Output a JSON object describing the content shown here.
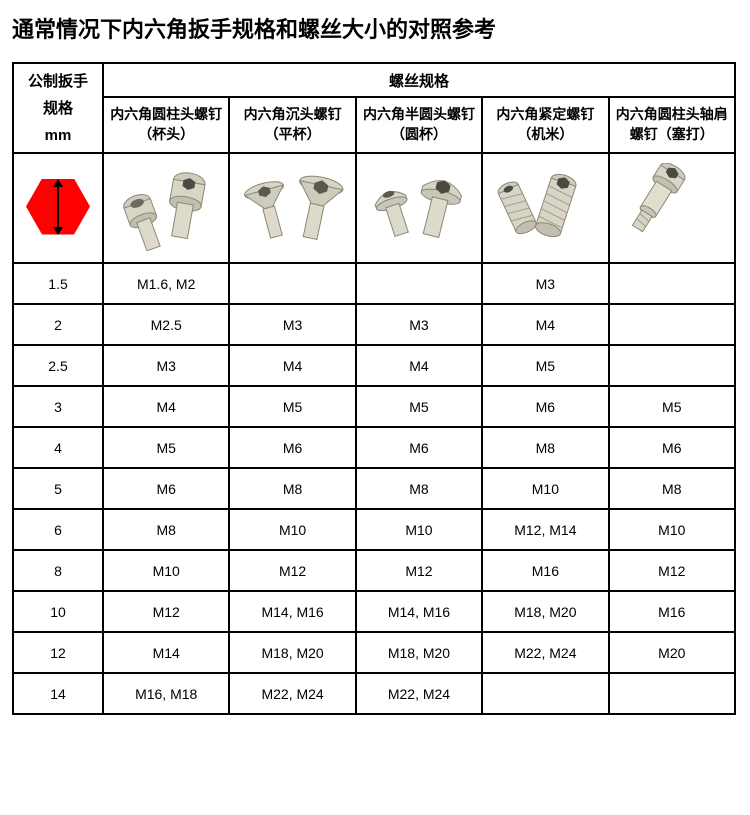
{
  "title": "通常情况下内六角扳手规格和螺丝大小的对照参考",
  "headers": {
    "wrench": "公制扳手\n规格\nmm",
    "screw_spec": "螺丝规格",
    "cols": [
      "内六角圆柱头螺钉（杯头）",
      "内六角沉头螺钉（平杯）",
      "内六角半圆头螺钉（圆杯）",
      "内六角紧定螺钉（机米）",
      "内六角圆柱头轴肩螺钉（塞打）"
    ]
  },
  "colors": {
    "hexagon": "#ff0000",
    "arrow": "#000000",
    "screw_fill": "#d8d4c6",
    "screw_stroke": "#8a8876"
  },
  "icons": {
    "names": [
      "hex-wrench-icon",
      "socket-cap-screw-icon",
      "flat-head-screw-icon",
      "button-head-screw-icon",
      "set-screw-icon",
      "shoulder-screw-icon"
    ]
  },
  "rows": [
    {
      "wrench": "1.5",
      "cells": [
        "M1.6, M2",
        "",
        "",
        "M3",
        ""
      ]
    },
    {
      "wrench": "2",
      "cells": [
        "M2.5",
        "M3",
        "M3",
        "M4",
        ""
      ]
    },
    {
      "wrench": "2.5",
      "cells": [
        "M3",
        "M4",
        "M4",
        "M5",
        ""
      ]
    },
    {
      "wrench": "3",
      "cells": [
        "M4",
        "M5",
        "M5",
        "M6",
        "M5"
      ]
    },
    {
      "wrench": "4",
      "cells": [
        "M5",
        "M6",
        "M6",
        "M8",
        "M6"
      ]
    },
    {
      "wrench": "5",
      "cells": [
        "M6",
        "M8",
        "M8",
        "M10",
        "M8"
      ]
    },
    {
      "wrench": "6",
      "cells": [
        "M8",
        "M10",
        "M10",
        "M12, M14",
        "M10"
      ]
    },
    {
      "wrench": "8",
      "cells": [
        "M10",
        "M12",
        "M12",
        "M16",
        "M12"
      ]
    },
    {
      "wrench": "10",
      "cells": [
        "M12",
        "M14, M16",
        "M14, M16",
        "M18, M20",
        "M16"
      ]
    },
    {
      "wrench": "12",
      "cells": [
        "M14",
        "M18, M20",
        "M18, M20",
        "M22, M24",
        "M20"
      ]
    },
    {
      "wrench": "14",
      "cells": [
        "M16, M18",
        "M22, M24",
        "M22, M24",
        "",
        ""
      ]
    }
  ]
}
